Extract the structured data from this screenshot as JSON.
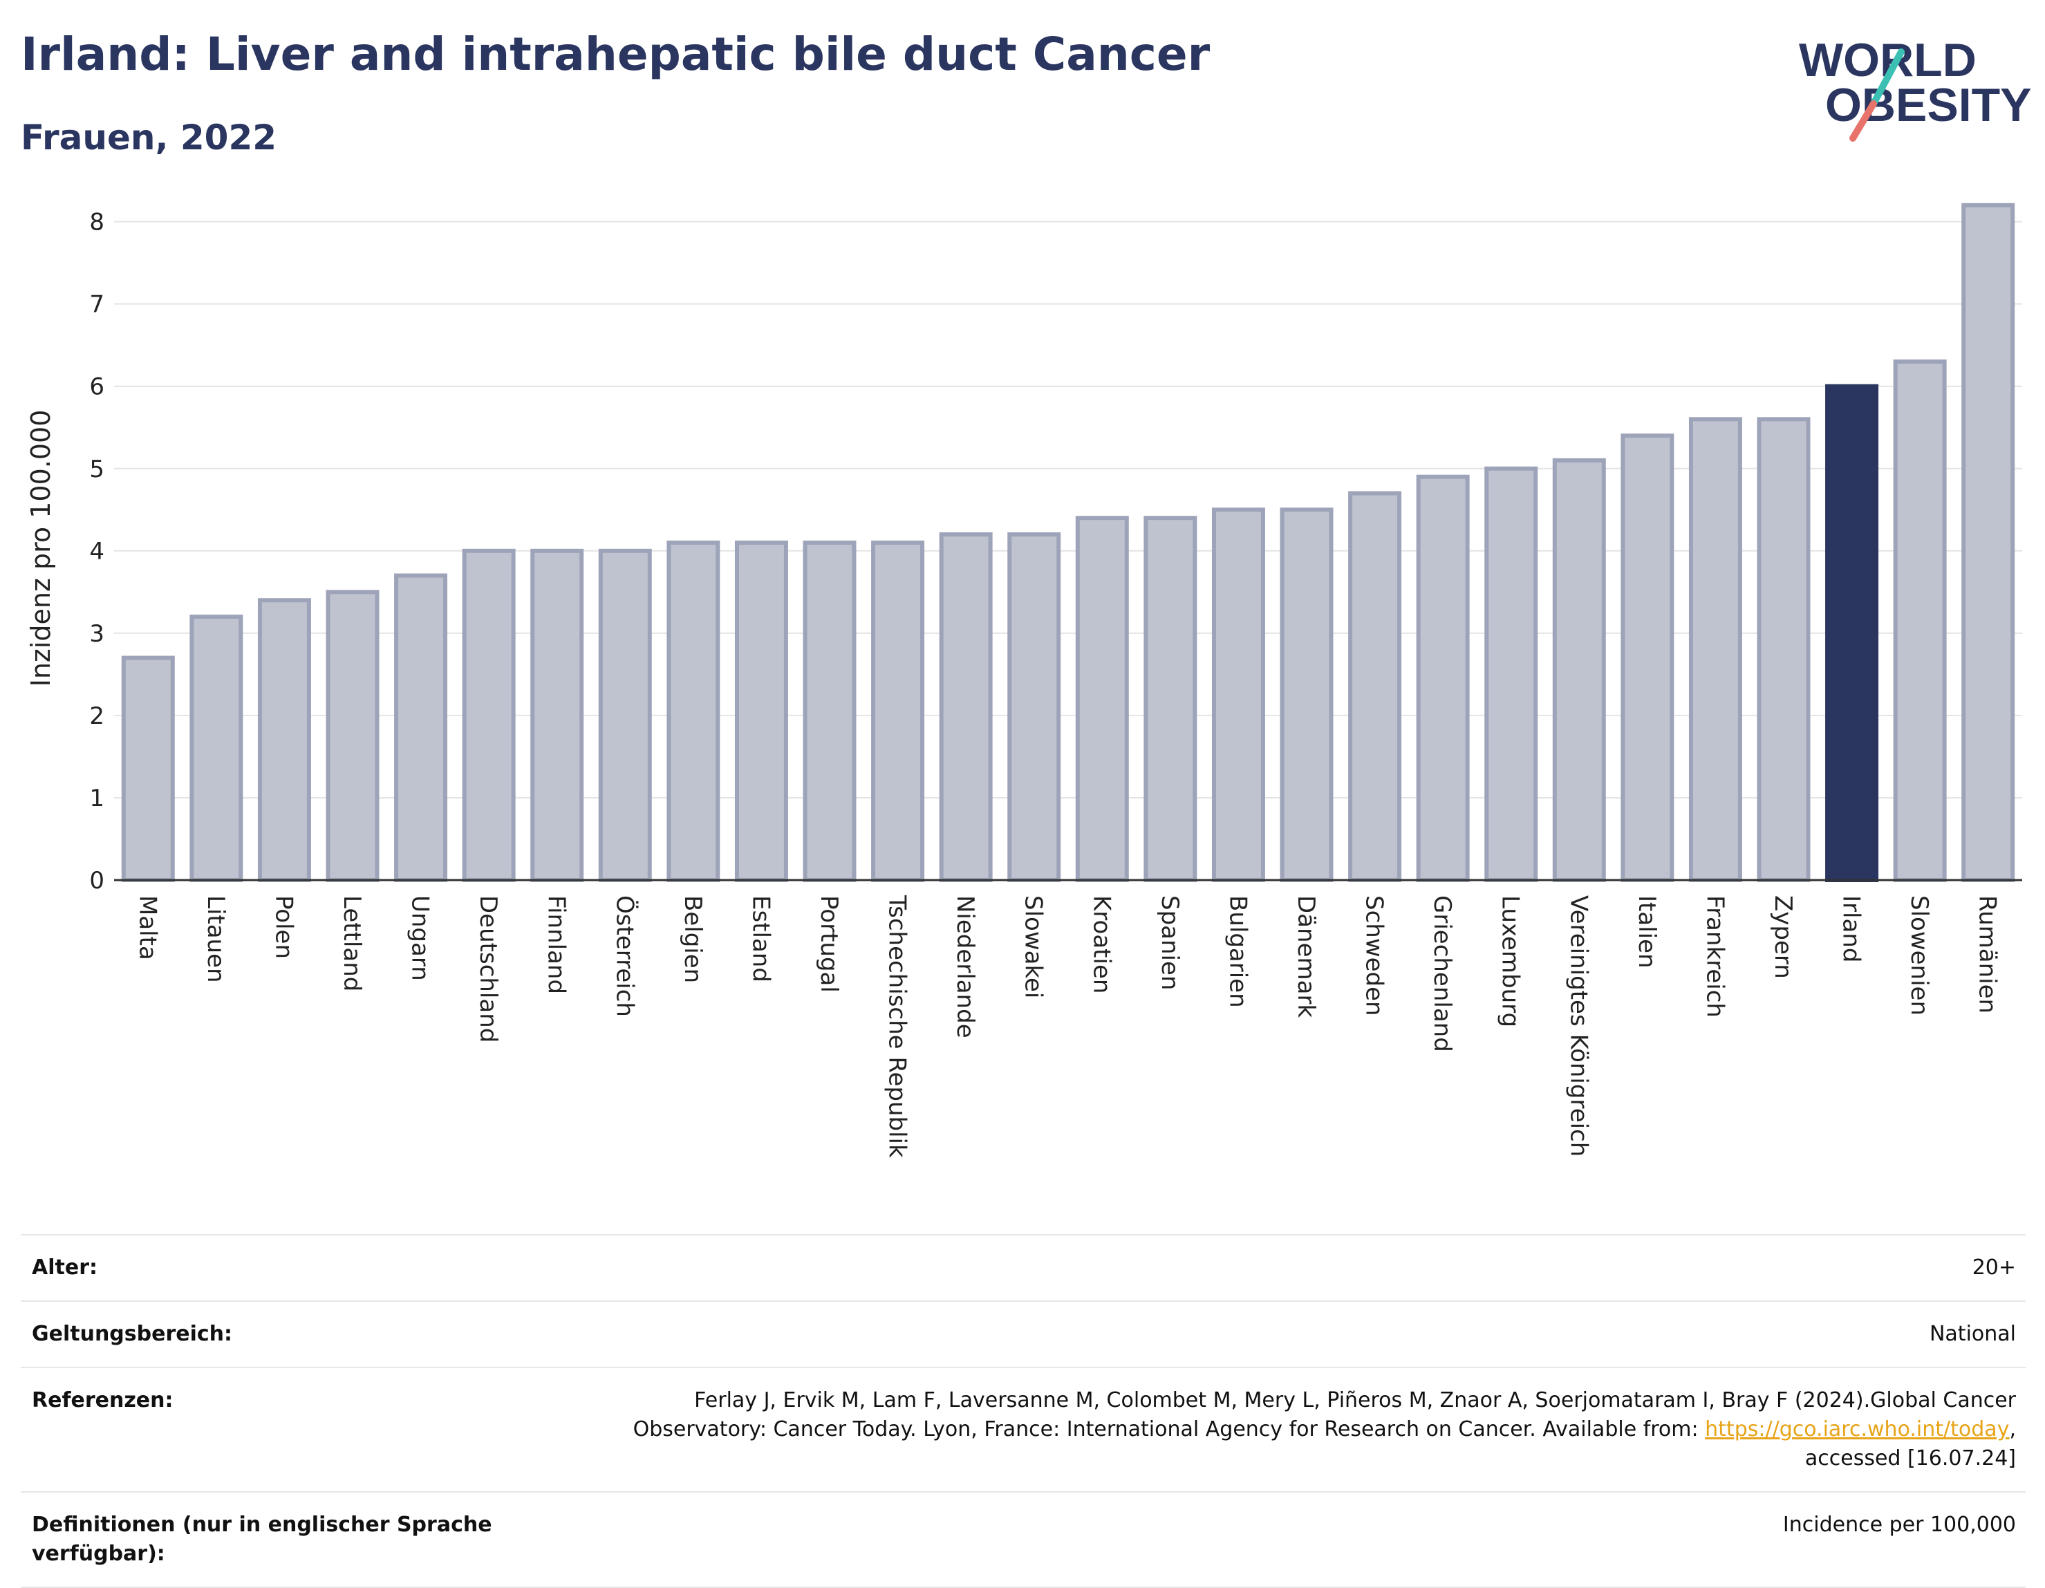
{
  "header": {
    "title": "Irland: Liver and intrahepatic bile duct Cancer",
    "subtitle": "Frauen, 2022",
    "logo_line1": "WORLD",
    "logo_line2": "OBESITY"
  },
  "colors": {
    "highlight": "#2a3560",
    "bar": "#bfc3d0",
    "bar_edge": "#9da3b8",
    "logo_slash_top": "#3cc0b4",
    "logo_slash_bottom": "#e8736a"
  },
  "chart_data": {
    "type": "bar",
    "title": "",
    "xlabel": "",
    "ylabel": "Inzidenz pro 100.000",
    "ylim": [
      0,
      8.4
    ],
    "yticks": [
      0,
      1,
      2,
      3,
      4,
      5,
      6,
      7,
      8
    ],
    "grid": true,
    "highlight": "Irland",
    "categories": [
      "Malta",
      "Litauen",
      "Polen",
      "Lettland",
      "Ungarn",
      "Deutschland",
      "Finnland",
      "Österreich",
      "Belgien",
      "Estland",
      "Portugal",
      "Tschechische Republik",
      "Niederlande",
      "Slowakei",
      "Kroatien",
      "Spanien",
      "Bulgarien",
      "Dänemark",
      "Schweden",
      "Griechenland",
      "Luxemburg",
      "Vereinigtes Königreich",
      "Italien",
      "Frankreich",
      "Zypern",
      "Irland",
      "Slowenien",
      "Rumänien"
    ],
    "values": [
      2.7,
      3.2,
      3.4,
      3.5,
      3.7,
      4.0,
      4.0,
      4.0,
      4.1,
      4.1,
      4.1,
      4.1,
      4.2,
      4.2,
      4.4,
      4.4,
      4.5,
      4.5,
      4.7,
      4.9,
      5.0,
      5.1,
      5.4,
      5.6,
      5.6,
      6.0,
      6.3,
      8.2
    ]
  },
  "meta": {
    "age_label": "Alter:",
    "age_value": "20+",
    "scope_label": "Geltungsbereich:",
    "scope_value": "National",
    "ref_label": "Referenzen:",
    "ref_text_1": "Ferlay J, Ervik M, Lam F, Laversanne M, Colombet M, Mery L, Piñeros M, Znaor A, Soerjomataram I, Bray F (2024).Global Cancer Observatory: Cancer Today. Lyon, France: International Agency for Research on Cancer. Available from: ",
    "ref_link": "https://gco.iarc.who.int/today",
    "ref_text_2": ", accessed [16.07.24]",
    "def_label": "Definitionen (nur in englischer Sprache verfügbar):",
    "def_value": "Incidence per 100,000"
  }
}
